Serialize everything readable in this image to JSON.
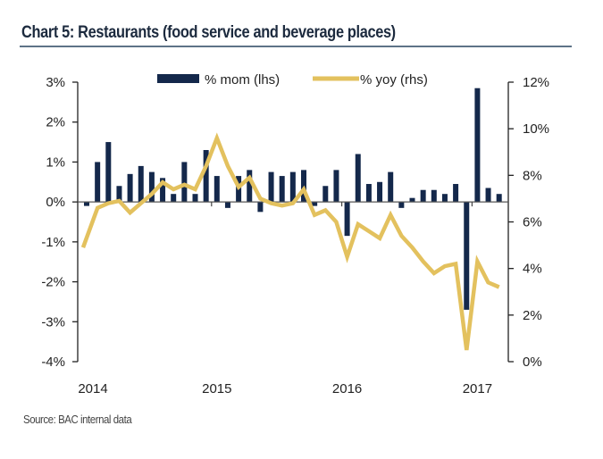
{
  "chart_data": {
    "type": "bar+line",
    "title": "Chart 5: Restaurants (food service and beverage places)",
    "source": "Source: BAC internal data",
    "x_tick_labels": [
      "2014",
      "2015",
      "2016",
      "2017"
    ],
    "x_start": "2014-01",
    "frequency": "monthly",
    "left_axis": {
      "label": "% mom (lhs)",
      "ticks": [
        "3%",
        "2%",
        "1%",
        "0%",
        "-1%",
        "-2%",
        "-3%",
        "-4%"
      ],
      "ylim": [
        -4,
        3
      ]
    },
    "right_axis": {
      "label": "% yoy (rhs)",
      "ticks": [
        "12%",
        "10%",
        "8%",
        "6%",
        "4%",
        "2%",
        "0%"
      ],
      "ylim": [
        0,
        12
      ]
    },
    "legend": {
      "placement": "top-center"
    },
    "series": [
      {
        "name": "% mom (lhs)",
        "type": "bar",
        "axis": "left",
        "color": "#14284b",
        "values": [
          -0.1,
          1.0,
          1.5,
          0.4,
          0.7,
          0.9,
          0.75,
          0.6,
          0.2,
          1.0,
          0.2,
          1.3,
          0.65,
          -0.15,
          0.65,
          0.8,
          -0.25,
          0.75,
          0.65,
          0.75,
          0.8,
          -0.1,
          0.4,
          0.8,
          -0.85,
          1.2,
          0.45,
          0.5,
          0.75,
          -0.15,
          0.1,
          0.3,
          0.3,
          0.2,
          0.45,
          -2.7,
          2.85,
          0.35,
          0.2
        ]
      },
      {
        "name": "% yoy (rhs)",
        "type": "line",
        "axis": "right",
        "color": "#e3c15e",
        "values": [
          4.9,
          6.6,
          6.8,
          6.9,
          6.4,
          6.8,
          7.2,
          7.7,
          7.4,
          7.6,
          7.4,
          8.4,
          9.6,
          8.4,
          7.5,
          7.9,
          7.0,
          6.8,
          6.7,
          6.8,
          7.4,
          6.3,
          6.5,
          6.0,
          4.5,
          5.9,
          5.6,
          5.3,
          6.3,
          5.4,
          4.9,
          4.3,
          3.8,
          4.1,
          4.2,
          0.5,
          4.3,
          3.4,
          3.2
        ]
      }
    ]
  }
}
